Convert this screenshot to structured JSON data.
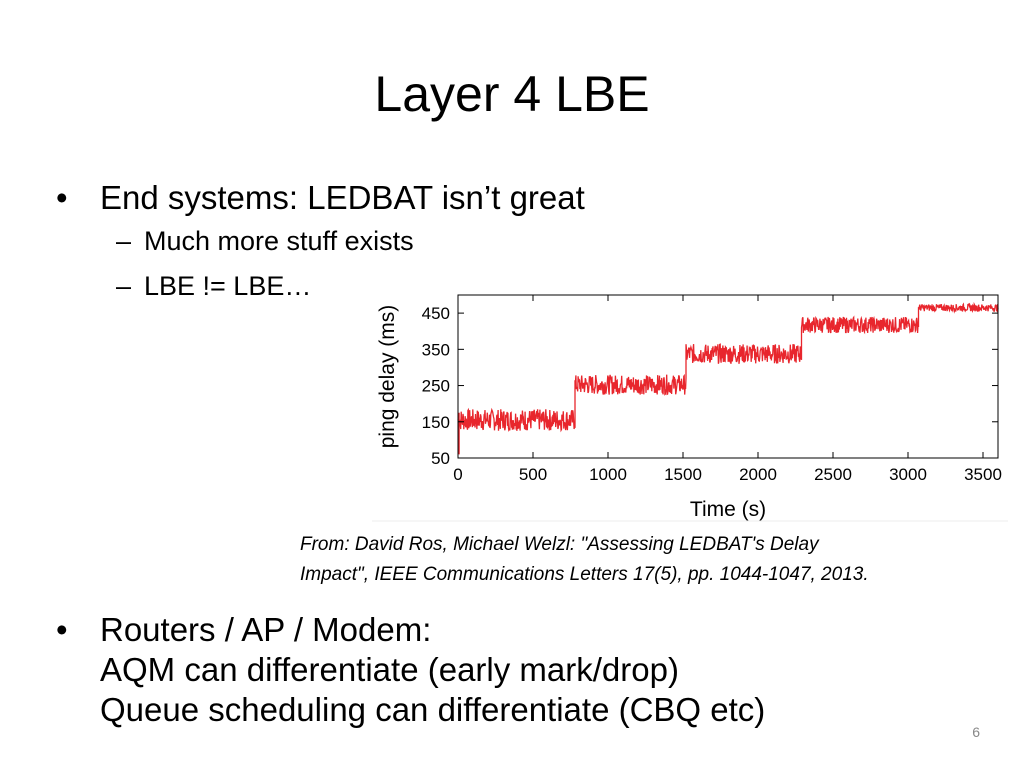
{
  "slide": {
    "title": "Layer 4 LBE",
    "page_number": "6",
    "bullets": [
      {
        "text": "End systems: LEDBAT isn’t great",
        "subs": [
          "Much more stuff exists",
          "LBE != LBE…"
        ]
      },
      {
        "text": "Routers / AP / Modem:\nAQM can differentiate (early mark/drop)\nQueue scheduling can differentiate (CBQ etc)"
      }
    ],
    "caption": "From: David Ros, Michael Welzl: \"Assessing LEDBAT's Delay\nImpact\", IEEE Communications Letters 17(5), pp. 1044-1047, 2013.",
    "bullet_glyph": "•",
    "dash_glyph": "–"
  },
  "chart_data": {
    "type": "line",
    "xlabel": "Time (s)",
    "ylabel": "ping delay (ms)",
    "xlim": [
      0,
      3600
    ],
    "ylim": [
      50,
      500
    ],
    "xticks": [
      0,
      500,
      1000,
      1500,
      2000,
      2500,
      3000,
      3500
    ],
    "yticks": [
      50,
      150,
      250,
      350,
      450
    ],
    "grid": false,
    "line_color": "#e8262d",
    "series": [
      {
        "segments": [
          {
            "x": [
              0,
              780
            ],
            "y_low": 125,
            "y_high": 185
          },
          {
            "x": [
              780,
              1520
            ],
            "y_low": 225,
            "y_high": 280
          },
          {
            "x": [
              1520,
              2290
            ],
            "y_low": 310,
            "y_high": 365
          },
          {
            "x": [
              2290,
              3070
            ],
            "y_low": 395,
            "y_high": 440
          },
          {
            "x": [
              3070,
              3600
            ],
            "y_low": 455,
            "y_high": 475
          }
        ]
      }
    ]
  }
}
